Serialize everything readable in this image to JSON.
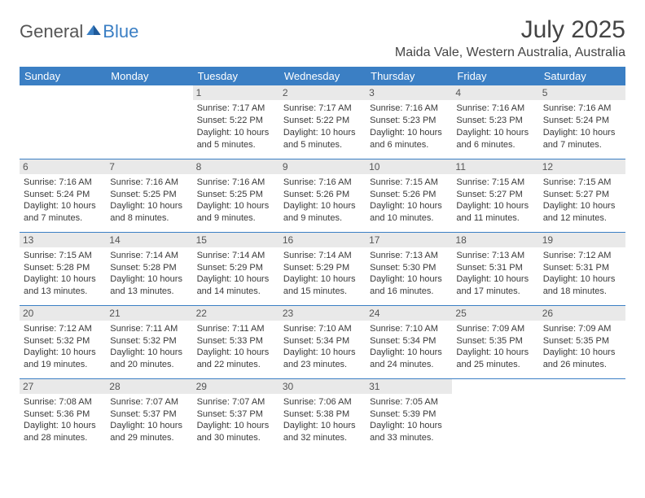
{
  "logo": {
    "part1": "General",
    "part2": "Blue"
  },
  "title": "July 2025",
  "location": "Maida Vale, Western Australia, Australia",
  "colors": {
    "header_bg": "#3b7fc4",
    "header_text": "#ffffff",
    "daynum_bg": "#e9e9e9",
    "border": "#3b7fc4",
    "text": "#3a3a3a",
    "logo_gray": "#555555",
    "logo_blue": "#3b7fc4"
  },
  "weekdays": [
    "Sunday",
    "Monday",
    "Tuesday",
    "Wednesday",
    "Thursday",
    "Friday",
    "Saturday"
  ],
  "weeks": [
    [
      null,
      null,
      {
        "d": "1",
        "sr": "7:17 AM",
        "ss": "5:22 PM",
        "dl": "10 hours and 5 minutes."
      },
      {
        "d": "2",
        "sr": "7:17 AM",
        "ss": "5:22 PM",
        "dl": "10 hours and 5 minutes."
      },
      {
        "d": "3",
        "sr": "7:16 AM",
        "ss": "5:23 PM",
        "dl": "10 hours and 6 minutes."
      },
      {
        "d": "4",
        "sr": "7:16 AM",
        "ss": "5:23 PM",
        "dl": "10 hours and 6 minutes."
      },
      {
        "d": "5",
        "sr": "7:16 AM",
        "ss": "5:24 PM",
        "dl": "10 hours and 7 minutes."
      }
    ],
    [
      {
        "d": "6",
        "sr": "7:16 AM",
        "ss": "5:24 PM",
        "dl": "10 hours and 7 minutes."
      },
      {
        "d": "7",
        "sr": "7:16 AM",
        "ss": "5:25 PM",
        "dl": "10 hours and 8 minutes."
      },
      {
        "d": "8",
        "sr": "7:16 AM",
        "ss": "5:25 PM",
        "dl": "10 hours and 9 minutes."
      },
      {
        "d": "9",
        "sr": "7:16 AM",
        "ss": "5:26 PM",
        "dl": "10 hours and 9 minutes."
      },
      {
        "d": "10",
        "sr": "7:15 AM",
        "ss": "5:26 PM",
        "dl": "10 hours and 10 minutes."
      },
      {
        "d": "11",
        "sr": "7:15 AM",
        "ss": "5:27 PM",
        "dl": "10 hours and 11 minutes."
      },
      {
        "d": "12",
        "sr": "7:15 AM",
        "ss": "5:27 PM",
        "dl": "10 hours and 12 minutes."
      }
    ],
    [
      {
        "d": "13",
        "sr": "7:15 AM",
        "ss": "5:28 PM",
        "dl": "10 hours and 13 minutes."
      },
      {
        "d": "14",
        "sr": "7:14 AM",
        "ss": "5:28 PM",
        "dl": "10 hours and 13 minutes."
      },
      {
        "d": "15",
        "sr": "7:14 AM",
        "ss": "5:29 PM",
        "dl": "10 hours and 14 minutes."
      },
      {
        "d": "16",
        "sr": "7:14 AM",
        "ss": "5:29 PM",
        "dl": "10 hours and 15 minutes."
      },
      {
        "d": "17",
        "sr": "7:13 AM",
        "ss": "5:30 PM",
        "dl": "10 hours and 16 minutes."
      },
      {
        "d": "18",
        "sr": "7:13 AM",
        "ss": "5:31 PM",
        "dl": "10 hours and 17 minutes."
      },
      {
        "d": "19",
        "sr": "7:12 AM",
        "ss": "5:31 PM",
        "dl": "10 hours and 18 minutes."
      }
    ],
    [
      {
        "d": "20",
        "sr": "7:12 AM",
        "ss": "5:32 PM",
        "dl": "10 hours and 19 minutes."
      },
      {
        "d": "21",
        "sr": "7:11 AM",
        "ss": "5:32 PM",
        "dl": "10 hours and 20 minutes."
      },
      {
        "d": "22",
        "sr": "7:11 AM",
        "ss": "5:33 PM",
        "dl": "10 hours and 22 minutes."
      },
      {
        "d": "23",
        "sr": "7:10 AM",
        "ss": "5:34 PM",
        "dl": "10 hours and 23 minutes."
      },
      {
        "d": "24",
        "sr": "7:10 AM",
        "ss": "5:34 PM",
        "dl": "10 hours and 24 minutes."
      },
      {
        "d": "25",
        "sr": "7:09 AM",
        "ss": "5:35 PM",
        "dl": "10 hours and 25 minutes."
      },
      {
        "d": "26",
        "sr": "7:09 AM",
        "ss": "5:35 PM",
        "dl": "10 hours and 26 minutes."
      }
    ],
    [
      {
        "d": "27",
        "sr": "7:08 AM",
        "ss": "5:36 PM",
        "dl": "10 hours and 28 minutes."
      },
      {
        "d": "28",
        "sr": "7:07 AM",
        "ss": "5:37 PM",
        "dl": "10 hours and 29 minutes."
      },
      {
        "d": "29",
        "sr": "7:07 AM",
        "ss": "5:37 PM",
        "dl": "10 hours and 30 minutes."
      },
      {
        "d": "30",
        "sr": "7:06 AM",
        "ss": "5:38 PM",
        "dl": "10 hours and 32 minutes."
      },
      {
        "d": "31",
        "sr": "7:05 AM",
        "ss": "5:39 PM",
        "dl": "10 hours and 33 minutes."
      },
      null,
      null
    ]
  ],
  "labels": {
    "sunrise": "Sunrise:",
    "sunset": "Sunset:",
    "daylight": "Daylight:"
  }
}
